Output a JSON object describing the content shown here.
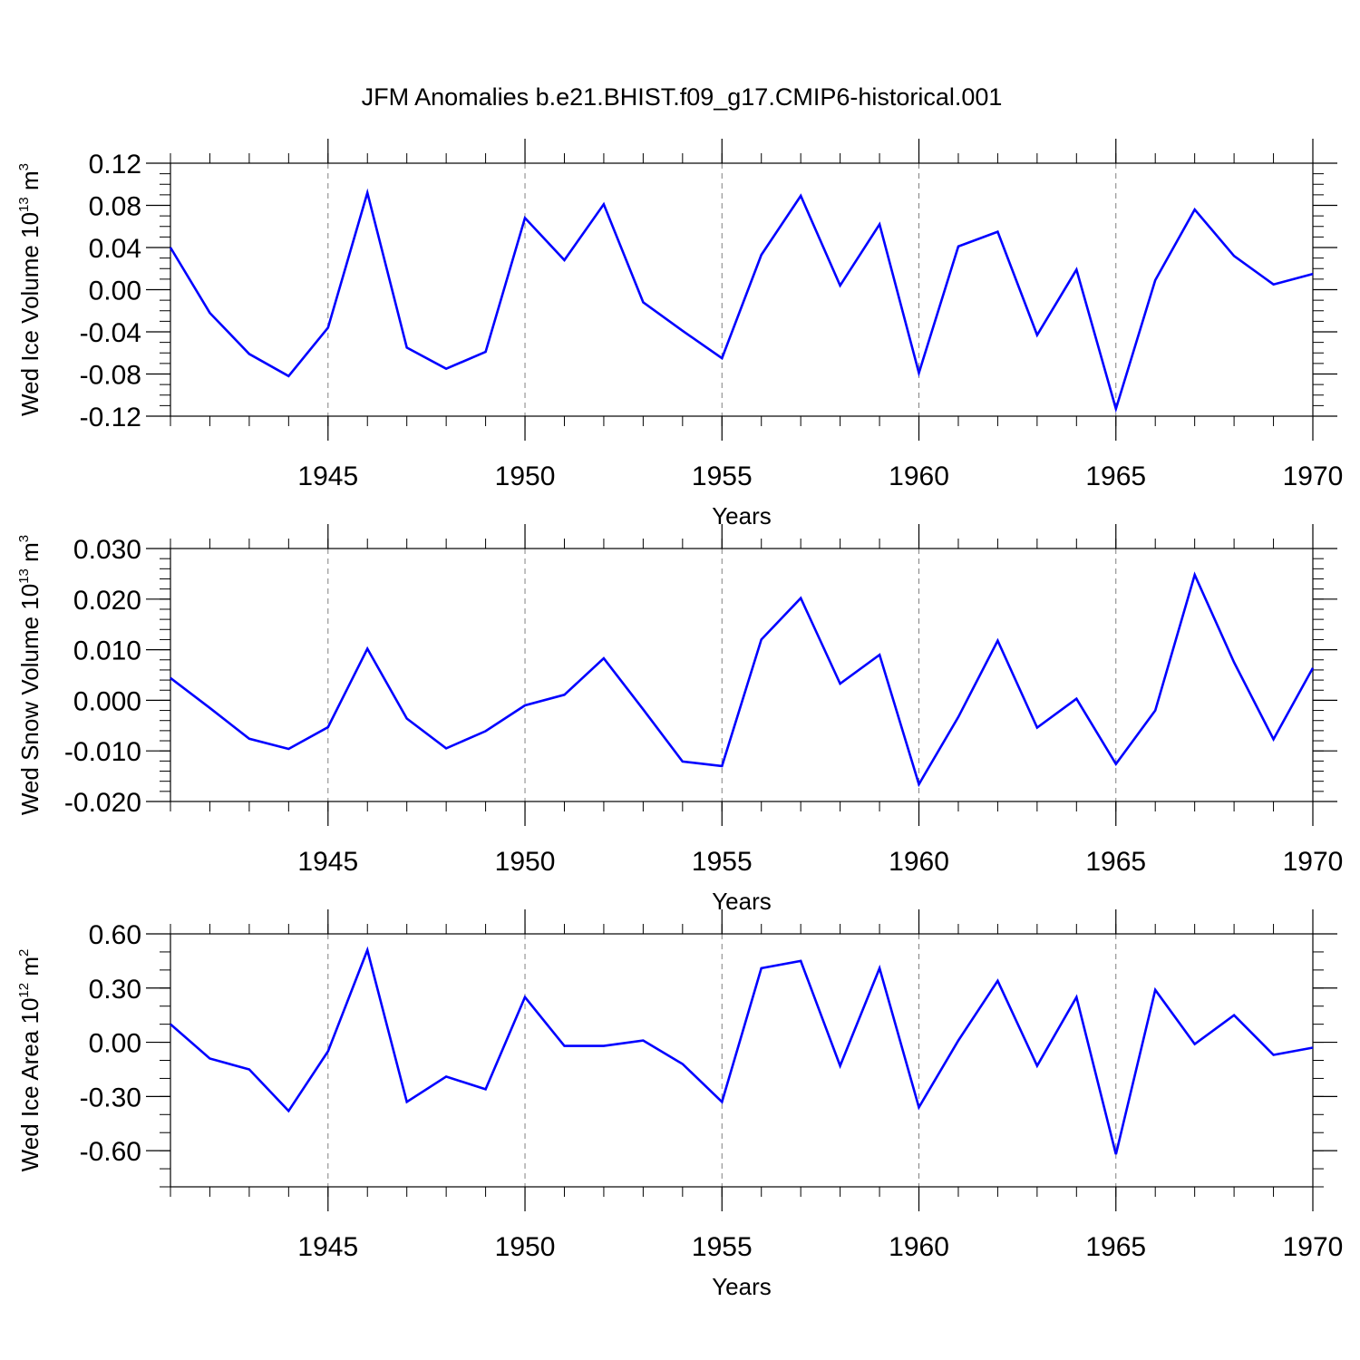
{
  "figure": {
    "title": "JFM Anomalies b.e21.BHIST.f09_g17.CMIP6-historical.001"
  },
  "chart_data": [
    {
      "type": "line",
      "title": "JFM Anomalies b.e21.BHIST.f09_g17.CMIP6-historical.001",
      "xlabel": "Years",
      "ylabel": {
        "main": "Wed Ice Volume 10",
        "exp": "13",
        "unit": " m",
        "unit_exp": "3"
      },
      "xlim": [
        1941,
        1970
      ],
      "ylim": [
        -0.12,
        0.12
      ],
      "x_ticks": [
        1945,
        1950,
        1955,
        1960,
        1965,
        1970
      ],
      "x_tick_labels": [
        "1945",
        "1950",
        "1955",
        "1960",
        "1965",
        "1970"
      ],
      "y_ticks": [
        -0.12,
        -0.08,
        -0.04,
        0.0,
        0.04,
        0.08,
        0.12
      ],
      "y_tick_labels": [
        "-0.12",
        "-0.08",
        "-0.04",
        "0.00",
        "0.04",
        "0.08",
        "0.12"
      ],
      "grid": "vertical dashed at major x ticks",
      "line_color": "#0000ff",
      "x": [
        1941,
        1942,
        1943,
        1944,
        1945,
        1946,
        1947,
        1948,
        1949,
        1950,
        1951,
        1952,
        1953,
        1954,
        1955,
        1956,
        1957,
        1958,
        1959,
        1960,
        1961,
        1962,
        1963,
        1964,
        1965,
        1966,
        1967,
        1968,
        1969,
        1970
      ],
      "values": [
        0.04,
        -0.022,
        -0.061,
        -0.082,
        -0.036,
        0.092,
        -0.055,
        -0.075,
        -0.059,
        0.068,
        0.028,
        0.081,
        -0.012,
        -0.039,
        -0.065,
        0.033,
        0.089,
        0.004,
        0.062,
        -0.079,
        0.041,
        0.055,
        -0.043,
        0.019,
        -0.113,
        0.009,
        0.076,
        0.032,
        0.005,
        0.015
      ]
    },
    {
      "type": "line",
      "xlabel": "Years",
      "ylabel": {
        "main": "Wed Snow Volume 10",
        "exp": "13",
        "unit": " m",
        "unit_exp": "3"
      },
      "xlim": [
        1941,
        1970
      ],
      "ylim": [
        -0.02,
        0.03
      ],
      "x_ticks": [
        1945,
        1950,
        1955,
        1960,
        1965,
        1970
      ],
      "x_tick_labels": [
        "1945",
        "1950",
        "1955",
        "1960",
        "1965",
        "1970"
      ],
      "y_ticks": [
        -0.02,
        -0.01,
        0.0,
        0.01,
        0.02,
        0.03
      ],
      "y_tick_labels": [
        "-0.020",
        "-0.010",
        "0.000",
        "0.010",
        "0.020",
        "0.030"
      ],
      "grid": "vertical dashed at major x ticks",
      "line_color": "#0000ff",
      "x": [
        1941,
        1942,
        1943,
        1944,
        1945,
        1946,
        1947,
        1948,
        1949,
        1950,
        1951,
        1952,
        1953,
        1954,
        1955,
        1956,
        1957,
        1958,
        1959,
        1960,
        1961,
        1962,
        1963,
        1964,
        1965,
        1966,
        1967,
        1968,
        1969,
        1970
      ],
      "values": [
        0.0044,
        -0.0015,
        -0.0076,
        -0.0096,
        -0.0053,
        0.0102,
        -0.0036,
        -0.0095,
        -0.0061,
        -0.001,
        0.0011,
        0.0083,
        -0.0018,
        -0.0121,
        -0.013,
        0.012,
        0.0202,
        0.0033,
        0.009,
        -0.0166,
        -0.0033,
        0.0118,
        -0.0054,
        0.0003,
        -0.0126,
        -0.002,
        0.0248,
        0.0075,
        -0.0077,
        0.0064
      ]
    },
    {
      "type": "line",
      "xlabel": "Years",
      "ylabel": {
        "main": "Wed Ice Area 10",
        "exp": "12",
        "unit": " m",
        "unit_exp": "2"
      },
      "xlim": [
        1941,
        1970
      ],
      "ylim": [
        -0.8,
        0.6
      ],
      "x_ticks": [
        1945,
        1950,
        1955,
        1960,
        1965,
        1970
      ],
      "x_tick_labels": [
        "1945",
        "1950",
        "1955",
        "1960",
        "1965",
        "1970"
      ],
      "y_ticks": [
        -0.6,
        -0.3,
        0.0,
        0.3,
        0.6
      ],
      "y_tick_labels": [
        "-0.60",
        "-0.30",
        "0.00",
        "0.30",
        "0.60"
      ],
      "grid": "vertical dashed at major x ticks",
      "line_color": "#0000ff",
      "x": [
        1941,
        1942,
        1943,
        1944,
        1945,
        1946,
        1947,
        1948,
        1949,
        1950,
        1951,
        1952,
        1953,
        1954,
        1955,
        1956,
        1957,
        1958,
        1959,
        1960,
        1961,
        1962,
        1963,
        1964,
        1965,
        1966,
        1967,
        1968,
        1969,
        1970
      ],
      "values": [
        0.1,
        -0.09,
        -0.15,
        -0.38,
        -0.05,
        0.51,
        -0.33,
        -0.19,
        -0.26,
        0.25,
        -0.02,
        -0.02,
        0.01,
        -0.12,
        -0.33,
        0.41,
        0.45,
        -0.13,
        0.41,
        -0.36,
        0.01,
        0.34,
        -0.13,
        0.25,
        -0.62,
        0.29,
        -0.01,
        0.15,
        -0.07,
        -0.03
      ]
    }
  ]
}
